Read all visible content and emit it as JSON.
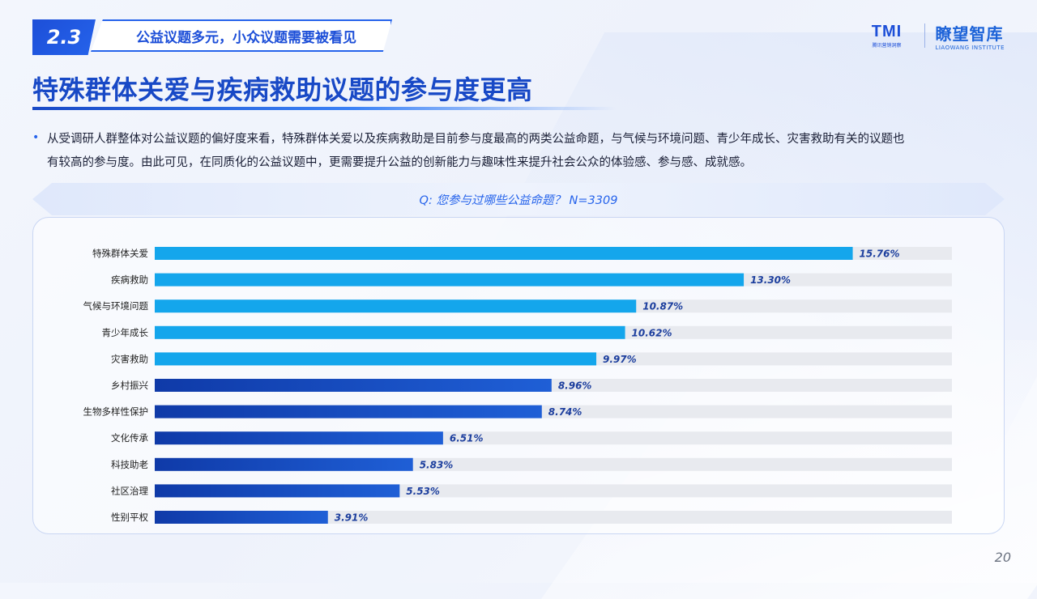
{
  "section": {
    "number": "2.3",
    "label": "公益议题多元，小众议题需要被看见"
  },
  "logos": {
    "tmi": {
      "mark": "TMI",
      "sub": "腾讯营销洞察"
    },
    "liaowang": {
      "cn": "瞭望智库",
      "en": "LIAOWANG INSTITUTE"
    }
  },
  "title": "特殊群体关爱与疾病救助议题的参与度更高",
  "body": {
    "line1": "从受调研人群整体对公益议题的偏好度来看，特殊群体关爱以及疾病救助是目前参与度最高的两类公益命题，与气候与环境问题、青少年成长、灾害救助有关的议题也",
    "line2": "有较高的参与度。由此可见，在同质化的公益议题中，更需要提升公益的创新能力与趣味性来提升社会公众的体验感、参与感、成就感。"
  },
  "question": "Q: 您参与过哪些公益命题？ N=3309",
  "page_number": "20",
  "colors": {
    "bar_top": "#14a6ec",
    "bar_bottom_start": "#0f3aa8",
    "bar_bottom_end": "#1f5fd6",
    "track": "#e8eaef",
    "value_label": "#1d3f9e",
    "category_label": "#222222"
  },
  "chart_data": {
    "type": "bar",
    "orientation": "horizontal",
    "categories": [
      "特殊群体关爱",
      "疾病救助",
      "气候与环境问题",
      "青少年成长",
      "灾害救助",
      "乡村振兴",
      "生物多样性保护",
      "文化传承",
      "科技助老",
      "社区治理",
      "性别平权"
    ],
    "values": [
      15.76,
      13.3,
      10.87,
      10.62,
      9.97,
      8.96,
      8.74,
      6.51,
      5.83,
      5.53,
      3.91
    ],
    "value_labels": [
      "15.76%",
      "13.30%",
      "10.87%",
      "10.62%",
      "9.97%",
      "8.96%",
      "8.74%",
      "6.51%",
      "5.83%",
      "5.53%",
      "3.91%"
    ],
    "highlight_top_n": 5,
    "xlim": [
      0,
      18
    ],
    "grid": false,
    "legend": "none"
  }
}
